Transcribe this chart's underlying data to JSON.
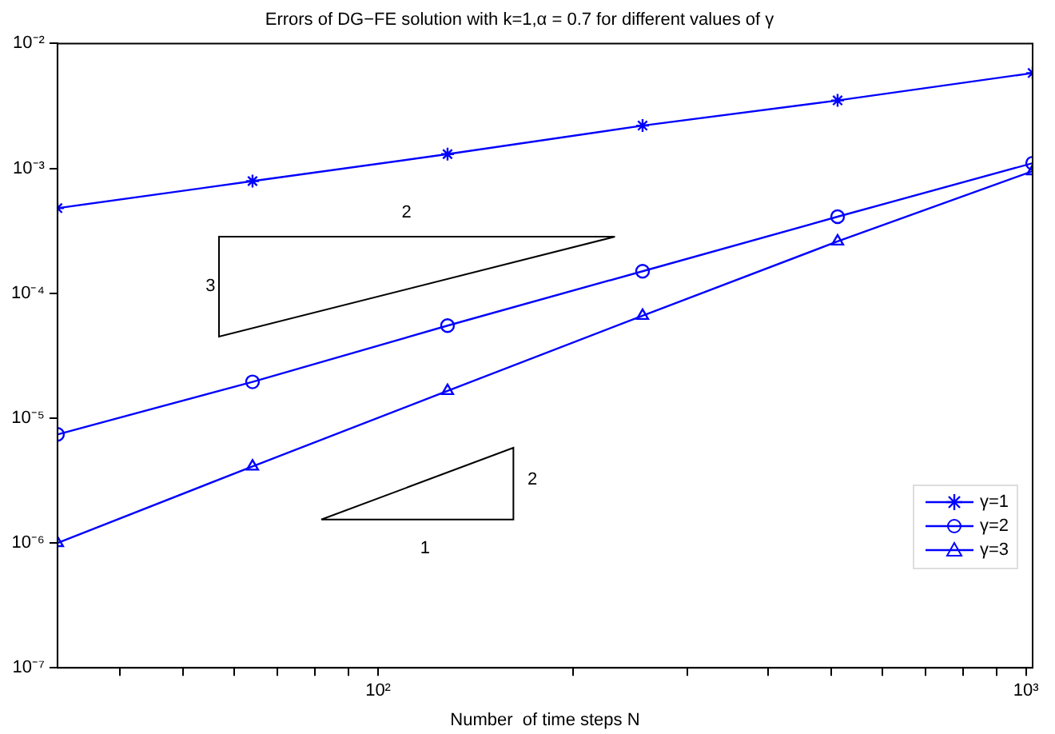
{
  "chart_data": {
    "type": "line",
    "title": "Errors of DG−FE solution with k=1,α = 0.7 for different values of γ",
    "xlabel": "Number  of time steps N",
    "x": [
      32,
      64,
      128,
      256,
      512,
      1024
    ],
    "series": [
      {
        "name": "γ=1",
        "color": "#0000ff",
        "marker": "cross",
        "values": [
          0.00048,
          0.00079,
          0.0013,
          0.0022,
          0.0035,
          0.0058
        ]
      },
      {
        "name": "γ=2",
        "color": "#0000ff",
        "marker": "circle",
        "values": [
          7.4e-06,
          1.95e-05,
          5.5e-05,
          0.00015,
          0.00041,
          0.0011
        ]
      },
      {
        "name": "γ=3",
        "color": "#0000ff",
        "marker": "triangle",
        "values": [
          1e-06,
          4.1e-06,
          1.65e-05,
          6.6e-05,
          0.00026,
          0.00095
        ]
      }
    ],
    "log": "xy",
    "xlim": [
      32,
      1024
    ],
    "ylim": [
      1e-07,
      0.01
    ],
    "xticks": [
      {
        "value": 40,
        "label": null
      },
      {
        "value": 50,
        "label": null
      },
      {
        "value": 60,
        "label": null
      },
      {
        "value": 70,
        "label": null
      },
      {
        "value": 80,
        "label": null
      },
      {
        "value": 90,
        "label": null
      },
      {
        "value": 100,
        "label": "10²"
      },
      {
        "value": 200,
        "label": null
      },
      {
        "value": 300,
        "label": null
      },
      {
        "value": 400,
        "label": null
      },
      {
        "value": 500,
        "label": null
      },
      {
        "value": 600,
        "label": null
      },
      {
        "value": 700,
        "label": null
      },
      {
        "value": 800,
        "label": null
      },
      {
        "value": 900,
        "label": null
      },
      {
        "value": 1000,
        "label": "10³"
      }
    ],
    "yticks": [
      {
        "value": 1e-07,
        "label": "10⁻⁷"
      },
      {
        "value": 1e-06,
        "label": "10⁻⁶"
      },
      {
        "value": 1e-05,
        "label": "10⁻⁵"
      },
      {
        "value": 0.0001,
        "label": "10⁻⁴"
      },
      {
        "value": 0.001,
        "label": "10⁻³"
      },
      {
        "value": 0.01,
        "label": "10⁻²"
      }
    ],
    "grid": false,
    "legend": "bottom right",
    "line_style": "solid",
    "annotations": [
      "2",
      "3",
      "2",
      "1"
    ]
  }
}
